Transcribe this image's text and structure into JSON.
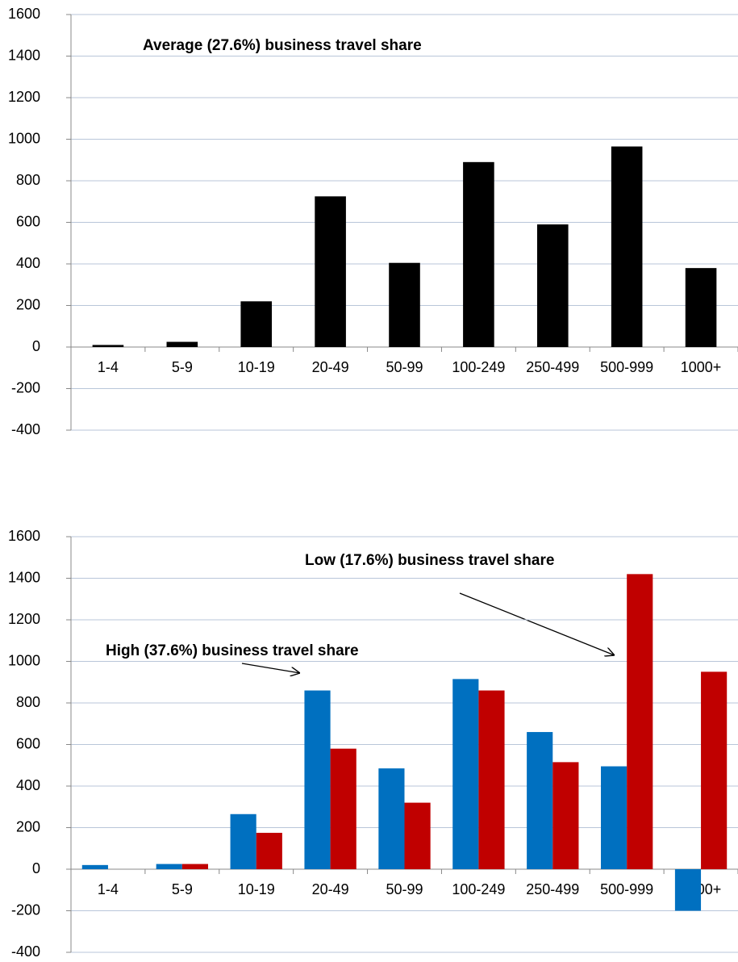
{
  "chart_data": [
    {
      "type": "bar",
      "categories": [
        "1-4",
        "5-9",
        "10-19",
        "20-49",
        "50-99",
        "100-249",
        "250-499",
        "500-999",
        "1000+"
      ],
      "series": [
        {
          "color": "#000000",
          "values": [
            10,
            25,
            220,
            725,
            405,
            890,
            590,
            965,
            380
          ]
        }
      ],
      "ylim": [
        -400,
        1600
      ],
      "yticks": [
        -400,
        -200,
        0,
        200,
        400,
        600,
        800,
        1000,
        1200,
        1400,
        1600
      ],
      "grid": true,
      "annotations": [
        "Average (27.6%) business travel share"
      ]
    },
    {
      "type": "bar",
      "categories": [
        "1-4",
        "5-9",
        "10-19",
        "20-49",
        "50-99",
        "100-249",
        "250-499",
        "500-999",
        "1000+"
      ],
      "series": [
        {
          "color": "#0070c0",
          "values": [
            20,
            25,
            265,
            860,
            485,
            915,
            660,
            495,
            -200
          ]
        },
        {
          "color": "#c00000",
          "values": [
            0,
            25,
            175,
            580,
            320,
            860,
            515,
            1420,
            950
          ]
        }
      ],
      "ylim": [
        -400,
        1600
      ],
      "yticks": [
        -400,
        -200,
        0,
        200,
        400,
        600,
        800,
        1000,
        1200,
        1400,
        1600
      ],
      "grid": true,
      "annotations": [
        "Low (17.6%) business travel share",
        "High (37.6%) business travel share"
      ]
    }
  ]
}
